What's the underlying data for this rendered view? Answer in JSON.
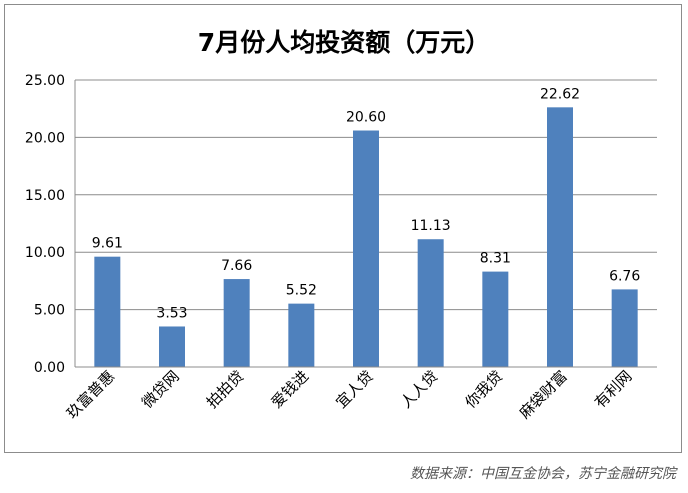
{
  "chart_data": {
    "type": "bar",
    "title": "7月份人均投资额（万元）",
    "categories": [
      "玖富普惠",
      "微贷网",
      "拍拍贷",
      "爱钱进",
      "宜人贷",
      "人人贷",
      "你我贷",
      "麻袋财富",
      "有利网"
    ],
    "values": [
      9.61,
      3.53,
      7.66,
      5.52,
      20.6,
      11.13,
      8.31,
      22.62,
      6.76
    ],
    "data_labels": [
      "9.61",
      "3.53",
      "7.66",
      "5.52",
      "20.60",
      "11.13",
      "8.31",
      "22.62",
      "6.76"
    ],
    "y_ticks": [
      "0.00",
      "5.00",
      "10.00",
      "15.00",
      "20.00",
      "25.00"
    ],
    "ylim": [
      0,
      25
    ],
    "grid": true,
    "legend": "none",
    "bar_color": "#4f81bd"
  },
  "source": "数据来源：中国互金协会，苏宁金融研究院"
}
